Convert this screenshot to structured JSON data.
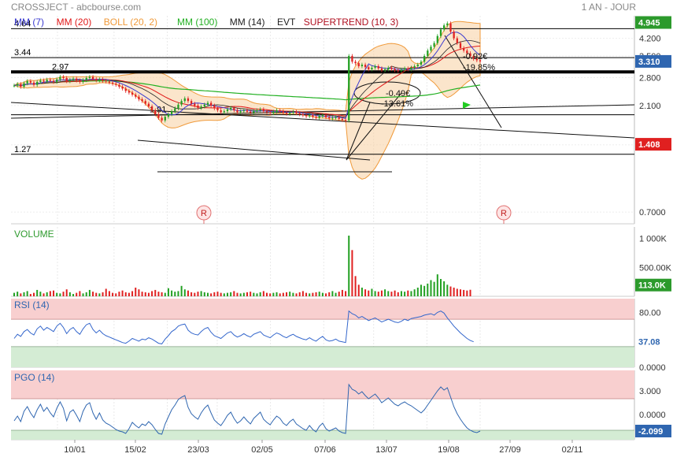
{
  "header": {
    "instrument": "CROSSJECT - abcbourse.com",
    "period": "1 AN - JOUR"
  },
  "legend": [
    {
      "label": "MM (7)",
      "color": "#3a3ad0"
    },
    {
      "label": "MM (20)",
      "color": "#e01818"
    },
    {
      "label": "BOLL (20, 2)",
      "color": "#f09a3a"
    },
    {
      "label": "MM (100)",
      "color": "#22b022"
    },
    {
      "label": "MM (14)",
      "color": "#222222"
    },
    {
      "label": "EVT",
      "color": "#222222"
    },
    {
      "label": "SUPERTREND (10, 3)",
      "color": "#b01020"
    }
  ],
  "colors": {
    "up_candle": "#22a022",
    "down_candle": "#e02020",
    "volume_up": "#22a022",
    "volume_down": "#e02020",
    "rsi_line": "#3366cc",
    "pgo_line": "#2f66b0",
    "overbought_zone": "#f8cfcf",
    "oversold_zone": "#d4ecd4",
    "boll_fill": "#f8cfa0",
    "last_price_badge": "#2c9a2c",
    "current_badge": "#2f66b0",
    "low_badge": "#e02020"
  },
  "chart_data": [
    {
      "type": "candlestick",
      "name": "price",
      "y_scale": "log",
      "ylim": [
        0.62,
        5.3
      ],
      "x_ticks": [
        "10/01",
        "15/02",
        "23/03",
        "02/05",
        "07/06",
        "13/07",
        "19/08",
        "27/09",
        "02/11"
      ],
      "y_ticks": [
        4.2,
        3.5,
        2.8,
        2.1,
        1.4,
        0.7
      ],
      "y_tick_labels": [
        "4.200",
        "3.500",
        "2.800",
        "2.100",
        "1.400",
        "0.7000"
      ],
      "badges": [
        {
          "label": "4.945",
          "value": 4.945,
          "role": "last_price"
        },
        {
          "label": "3.310",
          "value": 3.31,
          "role": "current"
        },
        {
          "label": "1.408",
          "value": 1.408,
          "role": "low"
        }
      ],
      "levels": [
        {
          "label": "4.64",
          "value": 4.64
        },
        {
          "label": "3.44",
          "value": 3.44
        },
        {
          "label": "2.97",
          "value": 2.97
        },
        {
          "label": "1.91",
          "value": 1.91
        },
        {
          "label": "1.27",
          "value": 1.27
        }
      ],
      "annotations": [
        "-0.49€",
        "-13.61%",
        "-0.92€",
        "-19.85%"
      ],
      "event_markers": [
        "R",
        "R"
      ],
      "close": [
        2.58,
        2.62,
        2.55,
        2.64,
        2.7,
        2.66,
        2.6,
        2.68,
        2.72,
        2.69,
        2.74,
        2.71,
        2.68,
        2.75,
        2.82,
        2.79,
        2.7,
        2.74,
        2.77,
        2.72,
        2.68,
        2.73,
        2.79,
        2.82,
        2.76,
        2.72,
        2.75,
        2.71,
        2.69,
        2.66,
        2.63,
        2.6,
        2.55,
        2.5,
        2.44,
        2.4,
        2.35,
        2.3,
        2.24,
        2.2,
        2.14,
        2.08,
        2.0,
        1.92,
        1.85,
        1.8,
        1.87,
        1.92,
        1.98,
        2.04,
        2.12,
        2.2,
        2.26,
        2.2,
        2.14,
        2.1,
        2.05,
        2.08,
        2.12,
        2.16,
        2.1,
        2.04,
        2.0,
        1.96,
        1.98,
        2.02,
        2.05,
        2.0,
        1.96,
        1.98,
        2.0,
        1.97,
        1.95,
        1.98,
        2.0,
        2.02,
        1.98,
        1.96,
        1.94,
        1.97,
        2.0,
        1.98,
        1.95,
        1.93,
        1.95,
        1.97,
        1.94,
        1.92,
        1.9,
        1.88,
        1.9,
        1.87,
        1.85,
        1.88,
        1.9,
        1.86,
        1.84,
        1.85,
        1.86,
        1.83,
        1.81,
        1.8,
        3.5,
        3.3,
        3.25,
        3.15,
        3.2,
        3.12,
        3.05,
        3.1,
        3.15,
        3.08,
        3.02,
        3.05,
        3.1,
        3.06,
        3.02,
        3.0,
        3.04,
        3.08,
        3.05,
        3.1,
        3.15,
        3.2,
        3.3,
        3.5,
        3.7,
        3.85,
        4.0,
        4.3,
        4.6,
        4.8,
        4.9,
        4.5,
        4.2,
        4.0,
        3.8,
        3.7,
        3.6,
        3.5,
        3.4,
        3.35,
        3.31
      ]
    },
    {
      "type": "bar",
      "name": "volume",
      "title": "VOLUME",
      "ylim": [
        0,
        1200000
      ],
      "y_ticks": [
        1000000,
        500000
      ],
      "y_tick_labels": [
        "1 000K",
        "500.00K"
      ],
      "badge": {
        "label": "113.0K",
        "value": 113000
      },
      "values": [
        60000,
        80000,
        50000,
        70000,
        90000,
        40000,
        60000,
        110000,
        80000,
        50000,
        70000,
        90000,
        100000,
        60000,
        50000,
        80000,
        120000,
        70000,
        40000,
        60000,
        90000,
        50000,
        70000,
        110000,
        80000,
        60000,
        50000,
        70000,
        130000,
        90000,
        60000,
        50000,
        80000,
        100000,
        70000,
        60000,
        90000,
        150000,
        120000,
        80000,
        70000,
        60000,
        90000,
        110000,
        80000,
        70000,
        60000,
        140000,
        100000,
        80000,
        90000,
        180000,
        120000,
        100000,
        70000,
        60000,
        80000,
        90000,
        70000,
        60000,
        50000,
        70000,
        80000,
        60000,
        50000,
        60000,
        70000,
        90000,
        60000,
        50000,
        60000,
        70000,
        80000,
        60000,
        50000,
        70000,
        90000,
        60000,
        50000,
        60000,
        70000,
        50000,
        60000,
        70000,
        80000,
        60000,
        50000,
        70000,
        90000,
        60000,
        50000,
        60000,
        70000,
        80000,
        60000,
        50000,
        70000,
        90000,
        60000,
        80000,
        110000,
        90000,
        1050000,
        800000,
        350000,
        200000,
        150000,
        120000,
        100000,
        130000,
        90000,
        80000,
        100000,
        120000,
        90000,
        80000,
        100000,
        70000,
        90000,
        80000,
        100000,
        90000,
        120000,
        150000,
        200000,
        180000,
        220000,
        280000,
        250000,
        380000,
        300000,
        260000,
        200000,
        170000,
        150000,
        130000,
        120000,
        110000,
        100000,
        113000
      ]
    },
    {
      "type": "line",
      "name": "rsi",
      "title": "RSI (14)",
      "ylim": [
        0,
        100
      ],
      "y_ticks": [
        80,
        0
      ],
      "y_tick_labels": [
        "80.00",
        "0.0000"
      ],
      "zones": {
        "overbought": 70,
        "oversold": 30
      },
      "badge": {
        "label": "37.08",
        "value": 37.08
      },
      "values": [
        42,
        48,
        45,
        52,
        55,
        50,
        47,
        56,
        60,
        54,
        58,
        55,
        52,
        60,
        64,
        58,
        49,
        55,
        58,
        52,
        48,
        56,
        62,
        64,
        55,
        50,
        54,
        49,
        46,
        44,
        42,
        40,
        38,
        36,
        35,
        38,
        42,
        40,
        38,
        41,
        40,
        43,
        41,
        38,
        35,
        34,
        41,
        46,
        52,
        55,
        60,
        62,
        63,
        54,
        50,
        48,
        47,
        52,
        56,
        58,
        51,
        46,
        44,
        42,
        46,
        50,
        52,
        47,
        44,
        46,
        49,
        46,
        44,
        48,
        50,
        52,
        47,
        45,
        43,
        47,
        50,
        48,
        45,
        43,
        46,
        48,
        45,
        43,
        41,
        40,
        43,
        40,
        38,
        42,
        45,
        40,
        38,
        39,
        41,
        38,
        37,
        36,
        82,
        78,
        76,
        72,
        74,
        71,
        68,
        70,
        72,
        69,
        66,
        68,
        70,
        68,
        66,
        65,
        67,
        70,
        68,
        71,
        72,
        73,
        74,
        76,
        77,
        78,
        76,
        80,
        82,
        79,
        72,
        66,
        60,
        55,
        50,
        46,
        42,
        39,
        37.08
      ]
    },
    {
      "type": "line",
      "name": "pgo",
      "title": "PGO (14)",
      "ylim": [
        -3.2,
        5.6
      ],
      "y_ticks": [
        3.0,
        0.0
      ],
      "y_tick_labels": [
        "3.000",
        "0.0000"
      ],
      "zones": {
        "overbought": 2.0,
        "oversold": -2.0
      },
      "badge": {
        "label": "-2.099",
        "value": -2.099
      },
      "values": [
        -0.8,
        -0.2,
        -0.9,
        0.4,
        1.0,
        0.2,
        -0.4,
        0.6,
        1.3,
        0.4,
        0.9,
        0.2,
        -0.3,
        0.8,
        1.6,
        0.8,
        -0.8,
        0.3,
        0.6,
        -0.1,
        -0.9,
        0.4,
        1.2,
        1.5,
        0.2,
        -0.6,
        0.2,
        -0.7,
        -1.1,
        -1.3,
        -1.6,
        -1.9,
        -2.1,
        -2.2,
        -2.4,
        -1.8,
        -1.0,
        -1.4,
        -1.7,
        -1.2,
        -1.4,
        -0.9,
        -1.3,
        -1.9,
        -2.4,
        -2.5,
        -1.2,
        -0.3,
        0.6,
        1.2,
        1.9,
        2.2,
        2.4,
        0.9,
        0.1,
        -0.3,
        -0.6,
        0.2,
        0.8,
        1.2,
        0.2,
        -0.7,
        -1.1,
        -1.4,
        -0.8,
        -0.1,
        0.3,
        -0.5,
        -1.1,
        -0.8,
        -0.3,
        -0.8,
        -1.2,
        -0.5,
        -0.1,
        0.3,
        -0.6,
        -1.0,
        -1.3,
        -0.7,
        -0.2,
        -0.5,
        -1.1,
        -1.4,
        -0.9,
        -0.6,
        -1.2,
        -1.5,
        -1.8,
        -2.0,
        -1.4,
        -1.9,
        -2.2,
        -1.5,
        -1.1,
        -1.8,
        -2.1,
        -1.9,
        -1.7,
        -2.1,
        -2.3,
        -2.4,
        3.8,
        3.2,
        3.0,
        2.6,
        2.9,
        2.4,
        2.0,
        2.3,
        2.6,
        2.1,
        1.5,
        1.8,
        2.1,
        1.7,
        1.3,
        1.1,
        1.4,
        1.6,
        1.3,
        1.1,
        0.8,
        0.5,
        0.2,
        0.6,
        1.2,
        1.8,
        2.4,
        3.0,
        3.5,
        3.1,
        3.4,
        2.2,
        1.0,
        0.1,
        -0.6,
        -1.2,
        -1.7,
        -2.0,
        -2.2,
        -2.3,
        -2.099
      ]
    }
  ]
}
